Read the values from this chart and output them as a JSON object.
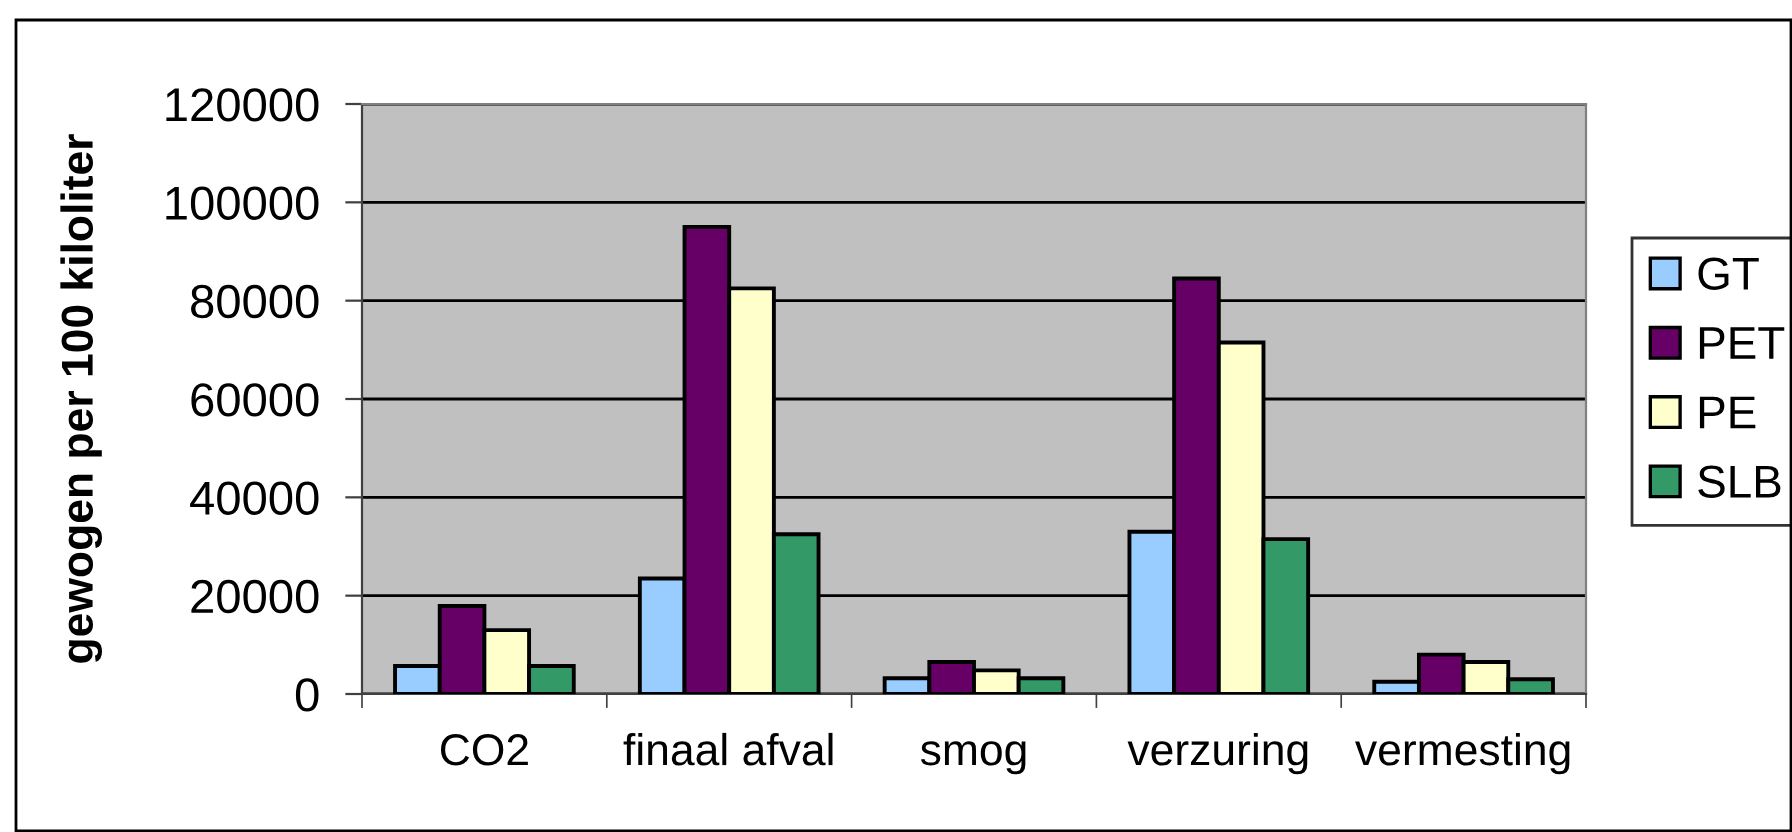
{
  "chart_data": {
    "type": "bar",
    "ylabel": "gewogen per 100 kiloliter",
    "categories": [
      "CO2",
      "finaal afval",
      "smog",
      "verzuring",
      "vermesting"
    ],
    "series": [
      {
        "name": "GT",
        "color": "#99ccff",
        "values": [
          5700,
          23500,
          3200,
          33000,
          2500
        ]
      },
      {
        "name": "PET",
        "color": "#660066",
        "values": [
          17900,
          95000,
          6500,
          84500,
          8000
        ]
      },
      {
        "name": "PE",
        "color": "#ffffcc",
        "values": [
          13000,
          82500,
          4800,
          71500,
          6500
        ]
      },
      {
        "name": "SLB",
        "color": "#339966",
        "values": [
          5700,
          32500,
          3200,
          31500,
          3000
        ]
      }
    ],
    "ylim": [
      0,
      120000
    ],
    "yticks": [
      0,
      20000,
      40000,
      60000,
      80000,
      100000,
      120000
    ],
    "grid": "y",
    "legend": "right"
  }
}
